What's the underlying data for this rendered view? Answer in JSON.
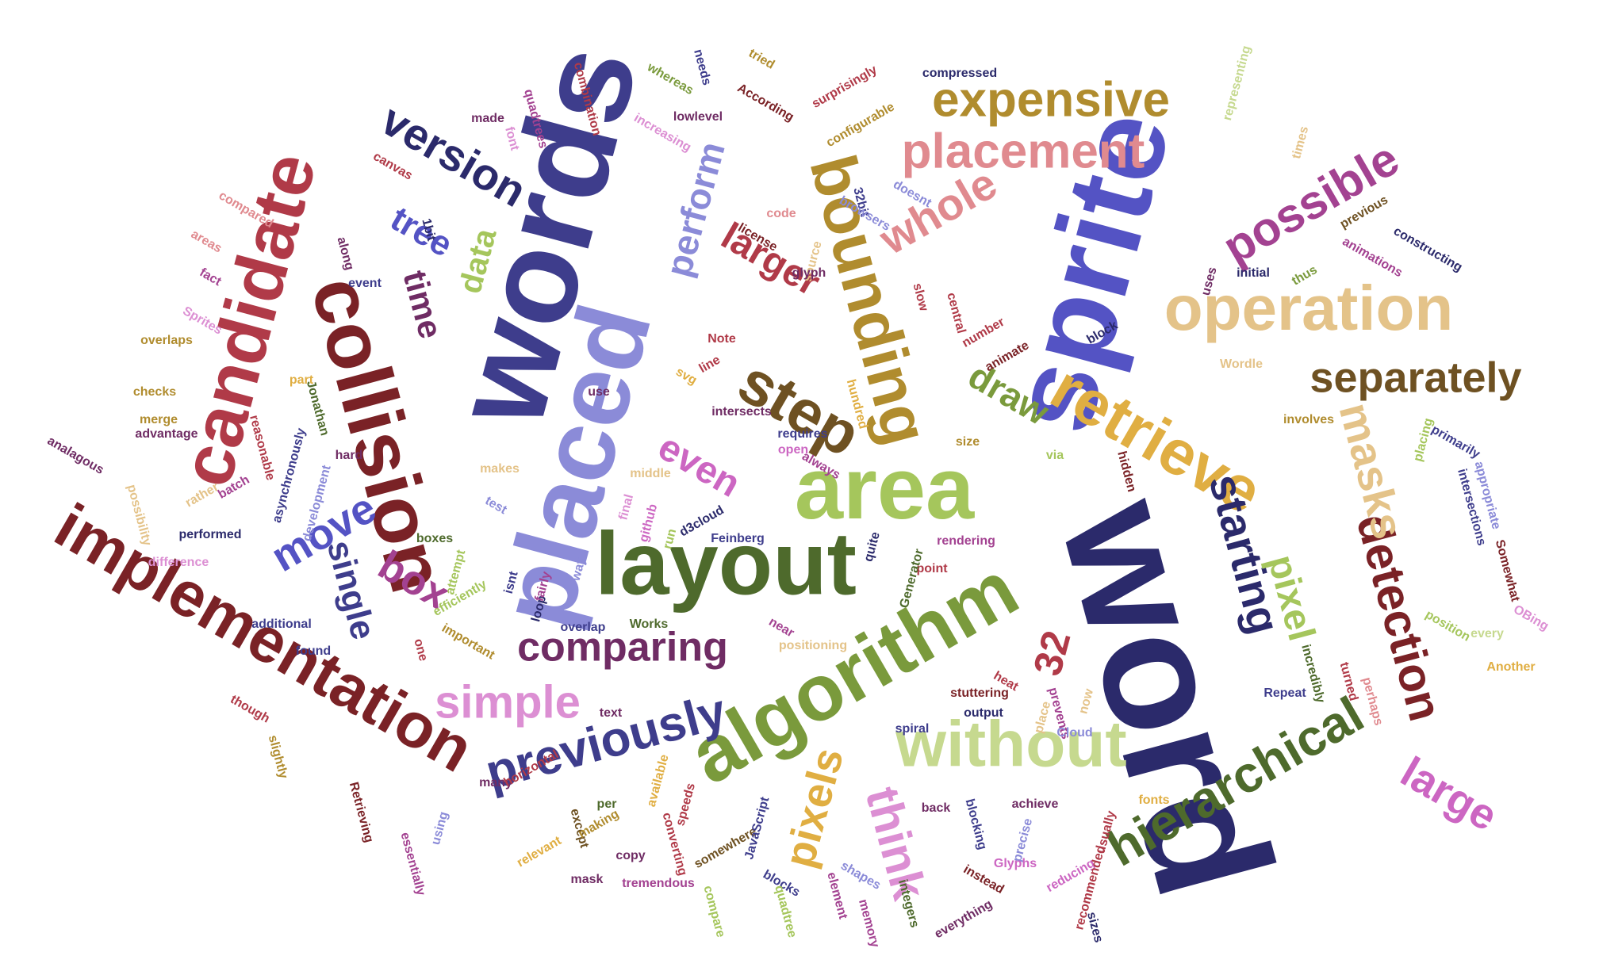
{
  "palette": {
    "navy": "#2b2a6b",
    "indigo": "#3e3d8c",
    "blue": "#5453c4",
    "lavender": "#8b8bd8",
    "olive": "#4e6a2c",
    "green": "#7a9a3c",
    "lime": "#a5c65c",
    "pale_lime": "#c6d98f",
    "brown": "#6e5122",
    "gold": "#b08c2e",
    "mustard": "#e0ae42",
    "tan": "#e4c389",
    "maroon": "#7a2226",
    "red": "#b03a48",
    "salmon": "#e08a8f",
    "plum": "#6f2c64",
    "magenta": "#a34291",
    "orchid": "#cc66c2",
    "light_orchid": "#dc8fd3"
  },
  "words": [
    {
      "text": "word",
      "color": "navy"
    },
    {
      "text": "sprite",
      "color": "blue"
    },
    {
      "text": "words",
      "color": "indigo"
    },
    {
      "text": "placed",
      "color": "lavender"
    },
    {
      "text": "layout",
      "color": "olive"
    },
    {
      "text": "algorithm",
      "color": "green"
    },
    {
      "text": "area",
      "color": "lime"
    },
    {
      "text": "collision",
      "color": "maroon"
    },
    {
      "text": "operation",
      "color": "tan"
    },
    {
      "text": "candidate",
      "color": "red"
    },
    {
      "text": "implementation",
      "color": "maroon"
    },
    {
      "text": "bounding",
      "color": "gold"
    },
    {
      "text": "without",
      "color": "pale_lime"
    },
    {
      "text": "retrieve",
      "color": "mustard"
    },
    {
      "text": "hierarchical",
      "color": "olive"
    },
    {
      "text": "previously",
      "color": "indigo"
    },
    {
      "text": "step",
      "color": "brown"
    },
    {
      "text": "expensive",
      "color": "gold"
    },
    {
      "text": "placement",
      "color": "salmon"
    },
    {
      "text": "detection",
      "color": "maroon"
    },
    {
      "text": "masks",
      "color": "tan"
    },
    {
      "text": "separately",
      "color": "brown"
    },
    {
      "text": "possible",
      "color": "magenta"
    },
    {
      "text": "comparing",
      "color": "plum"
    },
    {
      "text": "simple",
      "color": "light_orchid"
    },
    {
      "text": "starting",
      "color": "navy"
    },
    {
      "text": "pixel",
      "color": "lime"
    },
    {
      "text": "large",
      "color": "orchid"
    },
    {
      "text": "think",
      "color": "light_orchid"
    },
    {
      "text": "pixels",
      "color": "mustard"
    },
    {
      "text": "version",
      "color": "navy"
    },
    {
      "text": "move",
      "color": "blue"
    },
    {
      "text": "single",
      "color": "indigo"
    },
    {
      "text": "box",
      "color": "magenta"
    },
    {
      "text": "whole",
      "color": "salmon"
    },
    {
      "text": "larger",
      "color": "red"
    },
    {
      "text": "perform",
      "color": "lavender"
    },
    {
      "text": "even",
      "color": "orchid"
    },
    {
      "text": "draw",
      "color": "green"
    },
    {
      "text": "tree",
      "color": "blue"
    },
    {
      "text": "time",
      "color": "plum"
    },
    {
      "text": "data",
      "color": "lime"
    },
    {
      "text": "32",
      "color": "red"
    },
    {
      "text": "compressed",
      "color": "navy"
    },
    {
      "text": "whereas",
      "color": "green"
    },
    {
      "text": "needs",
      "color": "indigo"
    },
    {
      "text": "tried",
      "color": "gold"
    },
    {
      "text": "According",
      "color": "maroon"
    },
    {
      "text": "lowlevel",
      "color": "plum"
    },
    {
      "text": "increasing",
      "color": "light_orchid"
    },
    {
      "text": "made",
      "color": "plum"
    },
    {
      "text": "quadtrees",
      "color": "magenta"
    },
    {
      "text": "combination",
      "color": "red"
    },
    {
      "text": "surprisingly",
      "color": "red"
    },
    {
      "text": "configurable",
      "color": "gold"
    },
    {
      "text": "representing",
      "color": "pale_lime"
    },
    {
      "text": "times",
      "color": "tan"
    },
    {
      "text": "previous",
      "color": "brown"
    },
    {
      "text": "constructing",
      "color": "navy"
    },
    {
      "text": "animations",
      "color": "magenta"
    },
    {
      "text": "thus",
      "color": "green"
    },
    {
      "text": "initial",
      "color": "navy"
    },
    {
      "text": "uses",
      "color": "plum"
    },
    {
      "text": "block",
      "color": "navy"
    },
    {
      "text": "32bit",
      "color": "indigo"
    },
    {
      "text": "doesnt",
      "color": "lavender"
    },
    {
      "text": "browsers",
      "color": "lavender"
    },
    {
      "text": "code",
      "color": "salmon"
    },
    {
      "text": "license",
      "color": "maroon"
    },
    {
      "text": "source",
      "color": "tan"
    },
    {
      "text": "glyph",
      "color": "plum"
    },
    {
      "text": "Note",
      "color": "red"
    },
    {
      "text": "line",
      "color": "red"
    },
    {
      "text": "svg",
      "color": "mustard"
    },
    {
      "text": "use",
      "color": "plum"
    },
    {
      "text": "intersects",
      "color": "plum"
    },
    {
      "text": "requires",
      "color": "indigo"
    },
    {
      "text": "open",
      "color": "orchid"
    },
    {
      "text": "always",
      "color": "magenta"
    },
    {
      "text": "middle",
      "color": "tan"
    },
    {
      "text": "makes",
      "color": "tan"
    },
    {
      "text": "final",
      "color": "light_orchid"
    },
    {
      "text": "github",
      "color": "orchid"
    },
    {
      "text": "run",
      "color": "lime"
    },
    {
      "text": "d3cloud",
      "color": "navy"
    },
    {
      "text": "Feinberg",
      "color": "indigo"
    },
    {
      "text": "test",
      "color": "lavender"
    },
    {
      "text": "way",
      "color": "lavender"
    },
    {
      "text": "isnt",
      "color": "indigo"
    },
    {
      "text": "loop",
      "color": "navy"
    },
    {
      "text": "overlap",
      "color": "indigo"
    },
    {
      "text": "Works",
      "color": "olive"
    },
    {
      "text": "near",
      "color": "magenta"
    },
    {
      "text": "positioning",
      "color": "tan"
    },
    {
      "text": "important",
      "color": "gold"
    },
    {
      "text": "boxes",
      "color": "olive"
    },
    {
      "text": "attempt",
      "color": "lime"
    },
    {
      "text": "efficiently",
      "color": "lime"
    },
    {
      "text": "fairly",
      "color": "magenta"
    },
    {
      "text": "additional",
      "color": "indigo"
    },
    {
      "text": "found",
      "color": "indigo"
    },
    {
      "text": "one",
      "color": "red"
    },
    {
      "text": "text",
      "color": "plum"
    },
    {
      "text": "many",
      "color": "plum"
    },
    {
      "text": "horizontal",
      "color": "red"
    },
    {
      "text": "Retrieving",
      "color": "maroon"
    },
    {
      "text": "slightly",
      "color": "gold"
    },
    {
      "text": "though",
      "color": "red"
    },
    {
      "text": "essentially",
      "color": "magenta"
    },
    {
      "text": "using",
      "color": "lavender"
    },
    {
      "text": "per",
      "color": "olive"
    },
    {
      "text": "except",
      "color": "brown"
    },
    {
      "text": "relevant",
      "color": "mustard"
    },
    {
      "text": "making",
      "color": "gold"
    },
    {
      "text": "available",
      "color": "mustard"
    },
    {
      "text": "speeds",
      "color": "red"
    },
    {
      "text": "converting",
      "color": "red"
    },
    {
      "text": "copy",
      "color": "plum"
    },
    {
      "text": "mask",
      "color": "plum"
    },
    {
      "text": "tremendous",
      "color": "magenta"
    },
    {
      "text": "compare",
      "color": "lime"
    },
    {
      "text": "somewhere",
      "color": "brown"
    },
    {
      "text": "JavaScript",
      "color": "indigo"
    },
    {
      "text": "blocks",
      "color": "indigo"
    },
    {
      "text": "quadtree",
      "color": "lime"
    },
    {
      "text": "element",
      "color": "magenta"
    },
    {
      "text": "shapes",
      "color": "lavender"
    },
    {
      "text": "memory",
      "color": "magenta"
    },
    {
      "text": "integers",
      "color": "olive"
    },
    {
      "text": "everything",
      "color": "plum"
    },
    {
      "text": "back",
      "color": "plum"
    },
    {
      "text": "blocking",
      "color": "indigo"
    },
    {
      "text": "instead",
      "color": "maroon"
    },
    {
      "text": "achieve",
      "color": "plum"
    },
    {
      "text": "precise",
      "color": "lavender"
    },
    {
      "text": "Glyphs",
      "color": "orchid"
    },
    {
      "text": "reducing",
      "color": "orchid"
    },
    {
      "text": "usually",
      "color": "red"
    },
    {
      "text": "recommended",
      "color": "red"
    },
    {
      "text": "sizes",
      "color": "navy"
    },
    {
      "text": "fonts",
      "color": "mustard"
    },
    {
      "text": "spiral",
      "color": "indigo"
    },
    {
      "text": "output",
      "color": "navy"
    },
    {
      "text": "heat",
      "color": "red"
    },
    {
      "text": "place",
      "color": "tan"
    },
    {
      "text": "prevents",
      "color": "magenta"
    },
    {
      "text": "now",
      "color": "tan"
    },
    {
      "text": "Cloud",
      "color": "lavender"
    },
    {
      "text": "stuttering",
      "color": "maroon"
    },
    {
      "text": "point",
      "color": "red"
    },
    {
      "text": "rendering",
      "color": "magenta"
    },
    {
      "text": "Generator",
      "color": "olive"
    },
    {
      "text": "quite",
      "color": "navy"
    },
    {
      "text": "via",
      "color": "lime"
    },
    {
      "text": "size",
      "color": "gold"
    },
    {
      "text": "hidden",
      "color": "maroon"
    },
    {
      "text": "hundred",
      "color": "mustard"
    },
    {
      "text": "animate",
      "color": "maroon"
    },
    {
      "text": "number",
      "color": "red"
    },
    {
      "text": "central",
      "color": "red"
    },
    {
      "text": "slow",
      "color": "red"
    },
    {
      "text": "involves",
      "color": "gold"
    },
    {
      "text": "primarily",
      "color": "indigo"
    },
    {
      "text": "placing",
      "color": "lime"
    },
    {
      "text": "appropriate",
      "color": "lavender"
    },
    {
      "text": "intersections",
      "color": "indigo"
    },
    {
      "text": "Somewhat",
      "color": "maroon"
    },
    {
      "text": "position",
      "color": "lime"
    },
    {
      "text": "OBing",
      "color": "light_orchid"
    },
    {
      "text": "every",
      "color": "pale_lime"
    },
    {
      "text": "Another",
      "color": "mustard"
    },
    {
      "text": "perhaps",
      "color": "salmon"
    },
    {
      "text": "turned",
      "color": "red"
    },
    {
      "text": "incredibly",
      "color": "olive"
    },
    {
      "text": "Repeat",
      "color": "indigo"
    },
    {
      "text": "Wordle",
      "color": "tan"
    },
    {
      "text": "canvas",
      "color": "red"
    },
    {
      "text": "font",
      "color": "light_orchid"
    },
    {
      "text": "1bit",
      "color": "navy"
    },
    {
      "text": "compared",
      "color": "salmon"
    },
    {
      "text": "areas",
      "color": "salmon"
    },
    {
      "text": "along",
      "color": "plum"
    },
    {
      "text": "fact",
      "color": "magenta"
    },
    {
      "text": "event",
      "color": "indigo"
    },
    {
      "text": "Sprites",
      "color": "light_orchid"
    },
    {
      "text": "overlaps",
      "color": "gold"
    },
    {
      "text": "checks",
      "color": "gold"
    },
    {
      "text": "merge",
      "color": "gold"
    },
    {
      "text": "part",
      "color": "mustard"
    },
    {
      "text": "Jonathan",
      "color": "olive"
    },
    {
      "text": "analagous",
      "color": "plum"
    },
    {
      "text": "advantage",
      "color": "plum"
    },
    {
      "text": "reasonable",
      "color": "red"
    },
    {
      "text": "asynchronously",
      "color": "indigo"
    },
    {
      "text": "development",
      "color": "lavender"
    },
    {
      "text": "hard",
      "color": "plum"
    },
    {
      "text": "batch",
      "color": "magenta"
    },
    {
      "text": "rather",
      "color": "tan"
    },
    {
      "text": "possibility",
      "color": "tan"
    },
    {
      "text": "performed",
      "color": "navy"
    },
    {
      "text": "difference",
      "color": "light_orchid"
    }
  ]
}
